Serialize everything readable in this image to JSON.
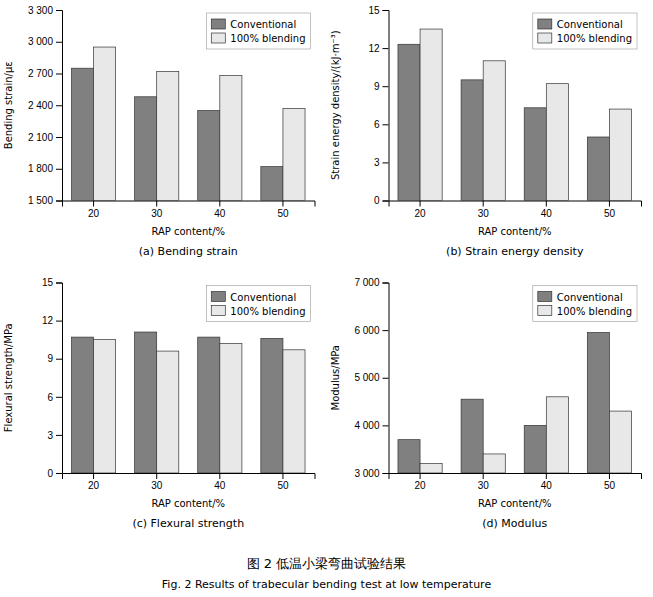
{
  "title": "图 2   低温小梁弯曲试验结果",
  "subtitle": "Fig. 2   Results of trabecular bending test at low temperature",
  "chart_data": [
    {
      "type": "bar",
      "title": "(a) Bending strain",
      "xlabel": "RAP content/%",
      "ylabel": "Bending strain/με",
      "categories": [
        20,
        30,
        40,
        50
      ],
      "series": [
        {
          "name": "Conventional",
          "color": "#808080",
          "values": [
            2750,
            2480,
            2350,
            1820
          ]
        },
        {
          "name": "100% blending",
          "color": "#e8e8e8",
          "values": [
            2950,
            2720,
            2680,
            2370
          ]
        }
      ],
      "ylim": [
        1500,
        3300
      ],
      "yticks": [
        {
          "value": 1500,
          "label": "1 500"
        },
        {
          "value": 1800,
          "label": "1 800"
        },
        {
          "value": 2100,
          "label": "2 100"
        },
        {
          "value": 2400,
          "label": "2 400"
        },
        {
          "value": 2700,
          "label": "2 700"
        },
        {
          "value": 3000,
          "label": "3 000"
        },
        {
          "value": 3300,
          "label": "3 300"
        }
      ],
      "grid": false,
      "legend": "upper right"
    },
    {
      "type": "bar",
      "title": "(b) Strain energy density",
      "xlabel": "RAP content/%",
      "ylabel": "Strain energy density/(kJ·m⁻³)",
      "categories": [
        20,
        30,
        40,
        50
      ],
      "series": [
        {
          "name": "Conventional",
          "color": "#808080",
          "values": [
            12.3,
            9.5,
            7.3,
            5.0
          ]
        },
        {
          "name": "100% blending",
          "color": "#e8e8e8",
          "values": [
            13.5,
            11.0,
            9.2,
            7.2
          ]
        }
      ],
      "ylim": [
        0,
        15
      ],
      "yticks": [
        0,
        3,
        6,
        9,
        12,
        15
      ],
      "grid": false,
      "legend": "upper right"
    },
    {
      "type": "bar",
      "title": "(c) Flexural strength",
      "xlabel": "RAP content/%",
      "ylabel": "Flexural strength/MPa",
      "categories": [
        20,
        30,
        40,
        50
      ],
      "series": [
        {
          "name": "Conventional",
          "color": "#808080",
          "values": [
            10.7,
            11.1,
            10.7,
            10.6
          ]
        },
        {
          "name": "100% blending",
          "color": "#e8e8e8",
          "values": [
            10.5,
            9.6,
            10.2,
            9.7
          ]
        }
      ],
      "ylim": [
        0,
        15
      ],
      "yticks": [
        0,
        3,
        6,
        9,
        12,
        15
      ],
      "grid": false,
      "legend": "upper right"
    },
    {
      "type": "bar",
      "title": "(d) Modulus",
      "xlabel": "RAP content/%",
      "ylabel": "Modulus/MPa",
      "categories": [
        20,
        30,
        40,
        50
      ],
      "series": [
        {
          "name": "Conventional",
          "color": "#808080",
          "values": [
            3700,
            4550,
            4000,
            5950
          ]
        },
        {
          "name": "100% blending",
          "color": "#e8e8e8",
          "values": [
            3200,
            3400,
            4600,
            4300
          ]
        }
      ],
      "ylim": [
        3000,
        7000
      ],
      "yticks": [
        {
          "value": 3000,
          "label": "3 000"
        },
        {
          "value": 4000,
          "label": "4 000"
        },
        {
          "value": 5000,
          "label": "5 000"
        },
        {
          "value": 6000,
          "label": "6 000"
        },
        {
          "value": 7000,
          "label": "7 000"
        }
      ],
      "grid": false,
      "legend": "upper right"
    }
  ]
}
